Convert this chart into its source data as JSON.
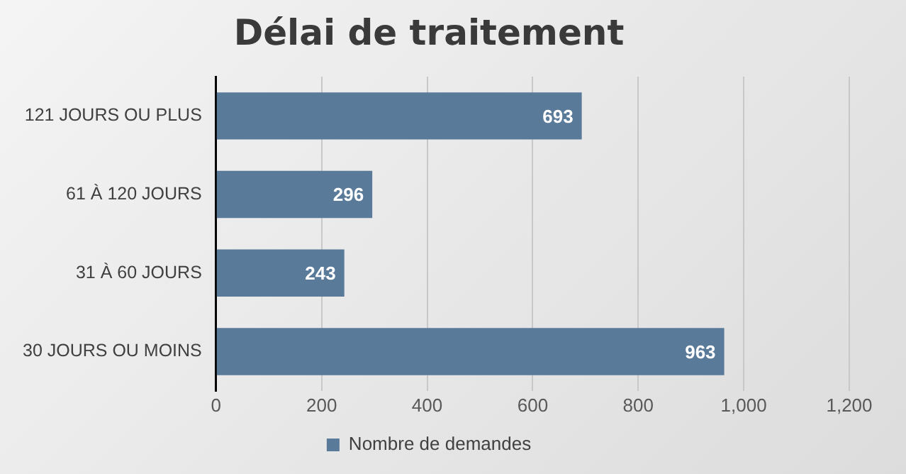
{
  "chart_data": {
    "type": "bar",
    "orientation": "horizontal",
    "title": "Délai de traitement",
    "categories": [
      "121 JOURS OU PLUS",
      "61 À 120 JOURS",
      "31 À 60 JOURS",
      "30 JOURS OU MOINS"
    ],
    "series": [
      {
        "name": "Nombre de demandes",
        "color": "#5a7a9a",
        "values": [
          693,
          296,
          243,
          963
        ]
      }
    ],
    "xlim": [
      0,
      1200
    ],
    "xticks": [
      0,
      200,
      400,
      600,
      800,
      {
        "value": 1000,
        "label": "1,000"
      },
      {
        "value": 1200,
        "label": "1,200"
      }
    ],
    "grid": "x",
    "legend": "bottom",
    "data_labels": true
  }
}
